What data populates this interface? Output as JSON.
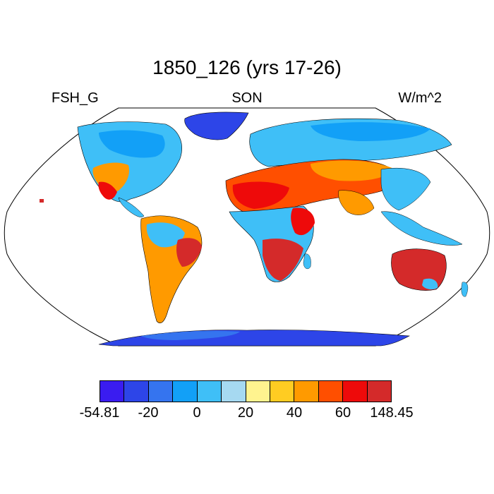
{
  "title": "1850_126 (yrs 17-26)",
  "left_label": "FSH_G",
  "center_label": "SON",
  "right_label": "W/m^2",
  "colorbar": {
    "colors": [
      "#3a1cf0",
      "#2d45e8",
      "#3574ef",
      "#12a0f7",
      "#3fbff7",
      "#a6d9f1",
      "#fff38f",
      "#ffcc22",
      "#ff9a00",
      "#ff4f00",
      "#ee0a0a",
      "#d42a2a"
    ],
    "tick_labels": [
      "-54.81",
      "-20",
      "0",
      "20",
      "40",
      "60",
      "148.45"
    ]
  },
  "map": {
    "projection": "robinson",
    "ocean_color": "#ffffff",
    "land_outline_color": "#000000"
  }
}
